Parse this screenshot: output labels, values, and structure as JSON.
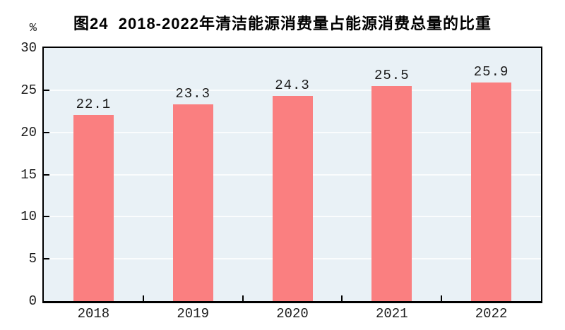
{
  "title": "图24  2018-2022年清洁能源消费量占能源消费总量的比重",
  "unit_label": "%",
  "chart_data": {
    "type": "bar",
    "title": "图24  2018-2022年清洁能源消费量占能源消费总量的比重",
    "categories": [
      "2018",
      "2019",
      "2020",
      "2021",
      "2022"
    ],
    "values": [
      22.1,
      23.3,
      24.3,
      25.5,
      25.9
    ],
    "value_labels": [
      "22.1",
      "23.3",
      "24.3",
      "25.5",
      "25.9"
    ],
    "ylabel": "%",
    "ylim": [
      0,
      30
    ],
    "yticks": [
      0,
      5,
      10,
      15,
      20,
      25,
      30
    ],
    "grid": "horizontal-white",
    "legend": "none",
    "colors": {
      "bar": "#FA7F80",
      "plot_background": "#E9F1F6",
      "gridline": "#FAFCFD",
      "axis": "#000000",
      "text": "#1A1A1A",
      "page_background": "#FFFFFF"
    }
  }
}
